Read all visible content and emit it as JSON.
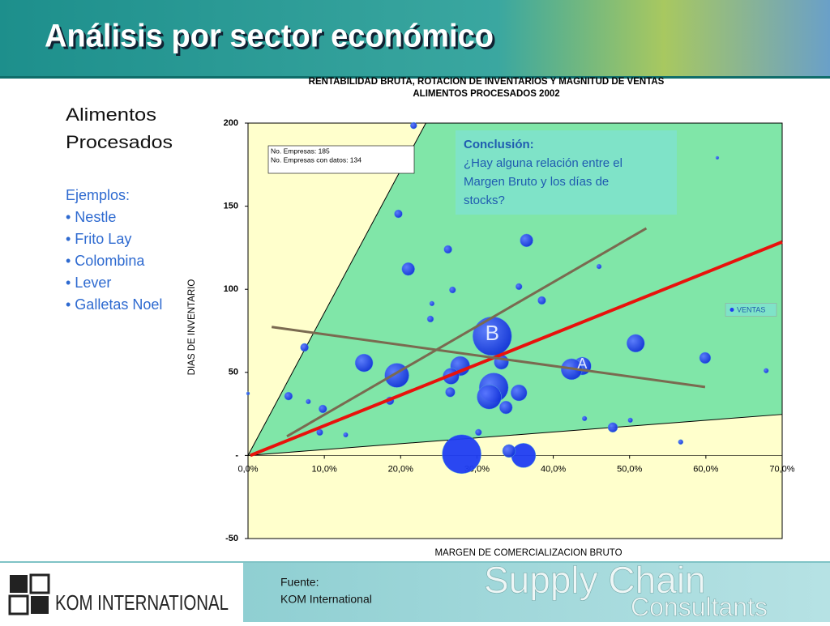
{
  "slide": {
    "title": "Análisis por sector económico",
    "sidebar_title": [
      "Alimentos",
      "Procesados"
    ],
    "examples_label": "Ejemplos:",
    "examples": [
      "• Nestle",
      "• Frito Lay",
      "• Colombina",
      "• Lever",
      "• Galletas Noel"
    ],
    "source_label": "Fuente:",
    "source": "KOM International",
    "logo_text": "KOM INTERNATIONAL",
    "brand": [
      "Supply Chain",
      "Consultants"
    ]
  },
  "chart_data": {
    "type": "scatter",
    "title": [
      "RENTABILIDAD BRUTA, ROTACION DE INVENTARIOS Y MAGNITUD DE VENTAS",
      "ALIMENTOS PROCESADOS 2002"
    ],
    "x_label": "MARGEN DE COMERCIALIZACION BRUTO",
    "y_label": "DIAS DE INVENTARIO",
    "xlim": [
      0,
      70
    ],
    "ylim": [
      -50,
      200
    ],
    "xticks": [
      {
        "value": 0,
        "label": "0,0%"
      },
      {
        "value": 10,
        "label": "10,0%"
      },
      {
        "value": 20,
        "label": "20,0%"
      },
      {
        "value": 30,
        "label": "30,0%"
      },
      {
        "value": 40,
        "label": "40,0%"
      },
      {
        "value": 50,
        "label": "50,0%"
      },
      {
        "value": 60,
        "label": "60,0%"
      },
      {
        "value": 70,
        "label": "70,0%"
      }
    ],
    "yticks": [
      -50,
      {
        "value": 0,
        "label": "-"
      },
      50,
      100,
      150,
      200
    ],
    "legend": "right",
    "series": [
      {
        "name": "VENTAS",
        "color": "#1f3df2",
        "x": [
          21.7,
          19.7,
          26.2,
          36.5,
          21,
          46,
          61.5,
          26.8,
          35.5,
          38.5,
          24.1,
          23.9,
          32,
          7.4,
          50.8,
          15.2,
          33.2,
          27.8,
          43.8,
          42.4,
          59.9,
          19.5,
          26.6,
          32.2,
          35.5,
          26.5,
          5.3,
          31.6,
          33.8,
          7.9,
          9.8,
          18.6,
          47.8,
          28,
          36.1,
          34.2,
          56.7,
          67.9,
          0,
          9.4,
          12.8,
          50.1,
          44.1,
          30.2
        ],
        "values": [
          198.5,
          145.4,
          124,
          129.4,
          112.2,
          113.7,
          179.1,
          99.6,
          101.6,
          93.3,
          91.4,
          82.1,
          71.8,
          65,
          67.5,
          55.7,
          56.2,
          53.8,
          53.8,
          51.9,
          58.7,
          48.2,
          47.7,
          40.9,
          37.7,
          38.1,
          35.7,
          35.2,
          28.9,
          32.4,
          28,
          32.9,
          16.9,
          0.8,
          0,
          2.7,
          8.1,
          51,
          37.3,
          13.9,
          12.4,
          21.2,
          22.2,
          13.9
        ],
        "sizes": [
          16,
          25,
          25,
          64,
          64,
          9,
          4,
          16,
          16,
          25,
          9,
          16,
          576,
          25,
          121,
          121,
          81,
          144,
          121,
          169,
          49,
          225,
          100,
          324,
          100,
          36,
          25,
          225,
          64,
          9,
          25,
          25,
          36,
          576,
          225,
          64,
          9,
          9,
          4,
          16,
          9,
          9,
          9,
          16
        ]
      }
    ],
    "info_box": [
      "No. Empresas:  185",
      "No. Empresas con datos:  134"
    ],
    "conclusion": {
      "title": "Conclusión:",
      "lines": [
        "¿Hay alguna relación entre el",
        "Margen Bruto y los días de",
        "stocks?"
      ]
    },
    "point_labels": [
      {
        "text": "B",
        "x": 32,
        "y": 71.8
      },
      {
        "text": "A",
        "x": 43.8,
        "y": 53.8
      }
    ],
    "region": {
      "color": "#80e6a8",
      "x": [
        0,
        23.3,
        70,
        70
      ],
      "y": [
        0,
        200,
        200,
        24.7
      ]
    },
    "trend_lines": [
      {
        "color": "#e8120c",
        "x": [
          0.3,
          70
        ],
        "y": [
          0,
          128.5
        ]
      },
      {
        "color": "#7a6a50",
        "x": [
          5.1,
          52.2
        ],
        "y": [
          11.5,
          136.7
        ]
      },
      {
        "color": "#7a6a50",
        "x": [
          3.1,
          59.9
        ],
        "y": [
          77.3,
          41.2
        ]
      }
    ]
  }
}
